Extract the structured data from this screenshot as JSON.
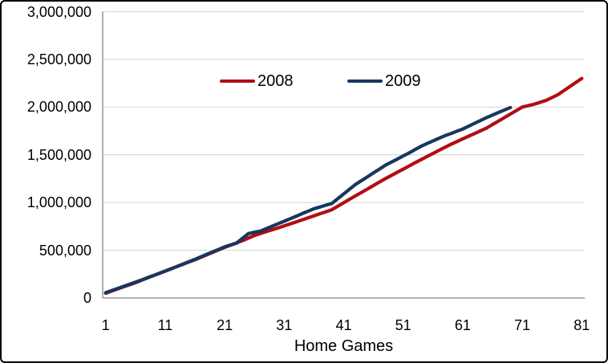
{
  "chart_data": {
    "type": "line",
    "title": "",
    "xlabel": "Home Games",
    "ylabel": "",
    "x_ticks": [
      1,
      11,
      21,
      31,
      41,
      51,
      61,
      71,
      81
    ],
    "x_max": 81,
    "ylim": [
      0,
      3000000
    ],
    "grid": true,
    "grid_color": "#D9D9D9",
    "axis_color": "#9B9B9B",
    "legend_position": "top-center-inside",
    "y_ticks": [
      {
        "value": 0,
        "label": "0"
      },
      {
        "value": 500000,
        "label": "500,000"
      },
      {
        "value": 1000000,
        "label": "1,000,000"
      },
      {
        "value": 1500000,
        "label": "1,500,000"
      },
      {
        "value": 2000000,
        "label": "2,000,000"
      },
      {
        "value": 2500000,
        "label": "2,500,000"
      },
      {
        "value": 3000000,
        "label": "3,000,000"
      }
    ],
    "series": [
      {
        "name": "2008",
        "color": "#B00E13",
        "x_start": 1,
        "values": [
          50000,
          72000,
          94000,
          116000,
          138000,
          160000,
          185000,
          209000,
          234000,
          258000,
          283000,
          306000,
          330000,
          353000,
          377000,
          400000,
          426000,
          452000,
          478000,
          504000,
          530000,
          553000,
          577000,
          600000,
          628000,
          655000,
          675000,
          695000,
          715000,
          735000,
          755000,
          775000,
          796000,
          818000,
          839000,
          860000,
          882000,
          903000,
          925000,
          961000,
          998000,
          1034000,
          1070000,
          1106000,
          1142000,
          1178000,
          1214000,
          1250000,
          1283000,
          1317000,
          1350000,
          1383000,
          1417000,
          1450000,
          1482000,
          1514000,
          1546000,
          1578000,
          1610000,
          1638000,
          1667000,
          1695000,
          1723000,
          1752000,
          1780000,
          1817000,
          1853000,
          1890000,
          1927000,
          1963000,
          2000000,
          2015000,
          2030000,
          2050000,
          2070000,
          2100000,
          2130000,
          2173000,
          2215000,
          2258000,
          2300000
        ]
      },
      {
        "name": "2009",
        "color": "#17375E",
        "x_start": 1,
        "values": [
          55000,
          77000,
          99000,
          121000,
          143000,
          165000,
          188000,
          211000,
          234000,
          257000,
          280000,
          305000,
          330000,
          355000,
          380000,
          405000,
          431000,
          457000,
          483000,
          509000,
          535000,
          555000,
          575000,
          625000,
          675000,
          688000,
          700000,
          726000,
          752000,
          778000,
          804000,
          830000,
          856000,
          883000,
          909000,
          935000,
          953000,
          972000,
          990000,
          1040000,
          1090000,
          1140000,
          1190000,
          1230000,
          1270000,
          1310000,
          1350000,
          1390000,
          1423000,
          1455000,
          1488000,
          1520000,
          1555000,
          1590000,
          1618000,
          1645000,
          1673000,
          1700000,
          1723000,
          1747000,
          1770000,
          1800000,
          1830000,
          1860000,
          1890000,
          1916000,
          1943000,
          1969000,
          1995000
        ]
      }
    ]
  }
}
